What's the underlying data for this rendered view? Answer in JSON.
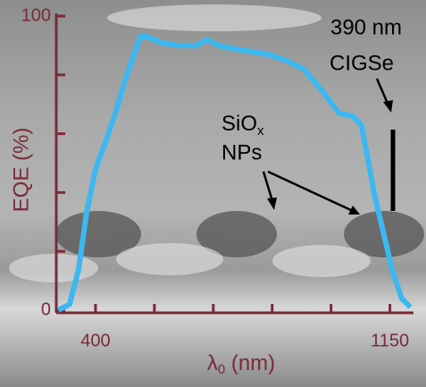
{
  "chart_data": {
    "type": "line",
    "xlabel": [
      "λ",
      "0",
      " (nm)"
    ],
    "ylabel": "EQE (%)",
    "x": [
      305,
      334,
      357,
      377,
      400,
      425,
      448,
      475,
      498,
      514,
      532,
      566,
      611,
      657,
      684,
      714,
      748,
      793,
      839,
      884,
      930,
      975,
      1020,
      1055,
      1077,
      1093,
      1111,
      1134,
      1157,
      1180,
      1202
    ],
    "series": [
      {
        "color": "#3cb8f0",
        "values": [
          0,
          2,
          14,
          33,
          48,
          57,
          66,
          78,
          87,
          93,
          93,
          91,
          90,
          90,
          92,
          90,
          89,
          88,
          87,
          85,
          82,
          75,
          67,
          66,
          63,
          52,
          39,
          26,
          13,
          4,
          1
        ]
      }
    ],
    "xlim": [
      300,
      1210
    ],
    "xticks": [
      400,
      1150
    ],
    "xminor_ticks": [
      550,
      700,
      850,
      1000
    ],
    "ylim": [
      0,
      100
    ],
    "yticks": [
      0,
      100
    ],
    "yminor_ticks": [
      20,
      40,
      60,
      80
    ],
    "axis_color": "#7a2a3a",
    "annotations": {
      "scale_value": "390 nm",
      "material": "CIGSe",
      "particles": [
        "SiO",
        "x",
        "NPs"
      ]
    }
  }
}
